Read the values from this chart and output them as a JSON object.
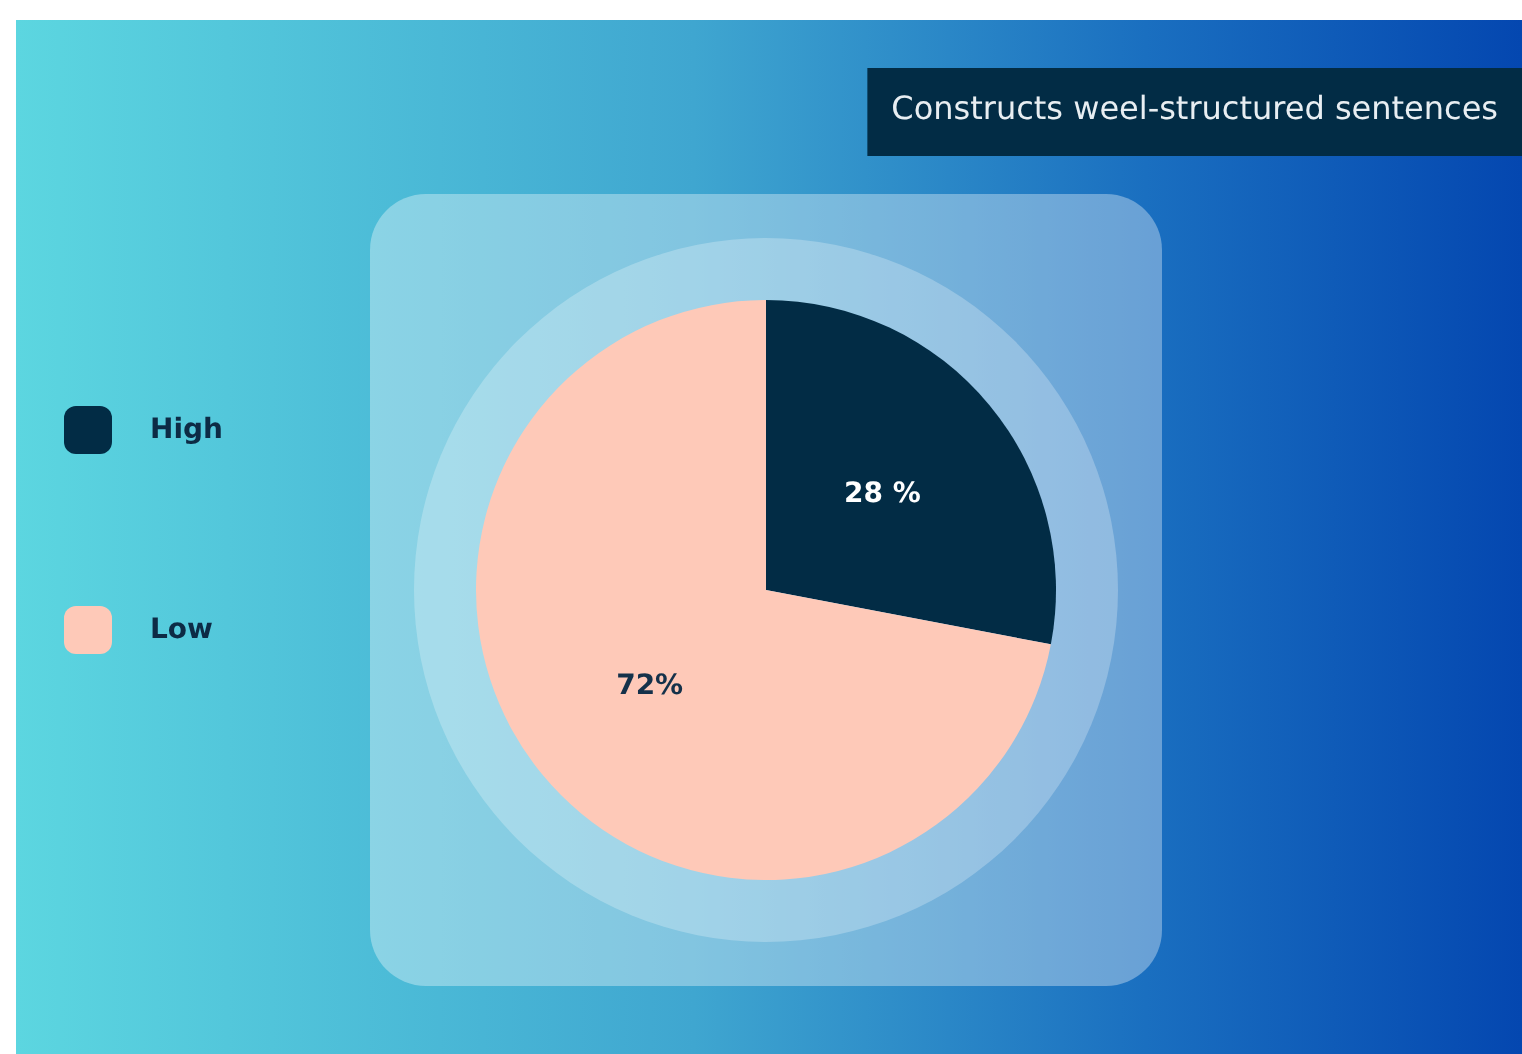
{
  "chart_data": {
    "type": "pie",
    "title": "Constructs weel-structured sentences",
    "categories": [
      "High",
      "Low"
    ],
    "values": [
      28,
      72
    ],
    "colors": [
      "#022c45",
      "#fec9b8"
    ],
    "value_labels": [
      "28 %",
      "72%"
    ],
    "legend": "left"
  }
}
